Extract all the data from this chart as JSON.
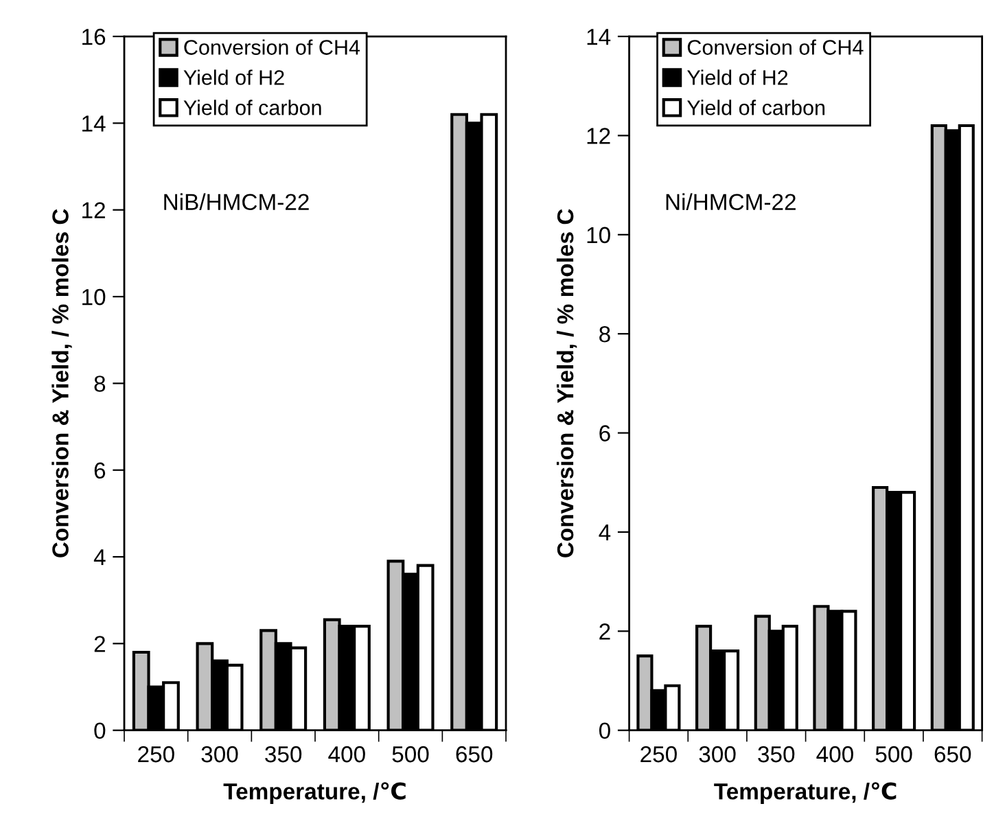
{
  "chart_data": [
    {
      "type": "bar",
      "xlabel": "Temperature, /℃",
      "ylabel": "Conversion & Yield, / % moles C",
      "annotations": [
        "NiB/HMCM-22"
      ],
      "categories": [
        "250",
        "300",
        "350",
        "400",
        "500",
        "650"
      ],
      "ylim": [
        0,
        16
      ],
      "yticks": [
        0,
        2,
        4,
        6,
        8,
        10,
        12,
        14,
        16
      ],
      "grid": false,
      "legend": "top left",
      "series": [
        {
          "name": "Conversion of CH4",
          "color": "#c0c0c0",
          "values": [
            1.8,
            2.0,
            2.3,
            2.55,
            3.9,
            14.2
          ]
        },
        {
          "name": "Yield of H2",
          "color": "#000000",
          "values": [
            1.0,
            1.6,
            2.0,
            2.4,
            3.6,
            14.0
          ]
        },
        {
          "name": "Yield of carbon",
          "color": "#ffffff",
          "values": [
            1.1,
            1.5,
            1.9,
            2.4,
            3.8,
            14.2
          ]
        }
      ]
    },
    {
      "type": "bar",
      "xlabel": "Temperature, /℃",
      "ylabel": "Conversion & Yield, / % moles C",
      "annotations": [
        "Ni/HMCM-22"
      ],
      "categories": [
        "250",
        "300",
        "350",
        "400",
        "500",
        "650"
      ],
      "ylim": [
        0,
        14
      ],
      "yticks": [
        0,
        2,
        4,
        6,
        8,
        10,
        12,
        14
      ],
      "grid": false,
      "legend": "top left",
      "series": [
        {
          "name": "Conversion of CH4",
          "color": "#c0c0c0",
          "values": [
            1.5,
            2.1,
            2.3,
            2.5,
            4.9,
            12.2
          ]
        },
        {
          "name": "Yield of H2",
          "color": "#000000",
          "values": [
            0.8,
            1.6,
            2.0,
            2.4,
            4.8,
            12.1
          ]
        },
        {
          "name": "Yield of carbon",
          "color": "#ffffff",
          "values": [
            0.9,
            1.6,
            2.1,
            2.4,
            4.8,
            12.2
          ]
        }
      ]
    }
  ]
}
